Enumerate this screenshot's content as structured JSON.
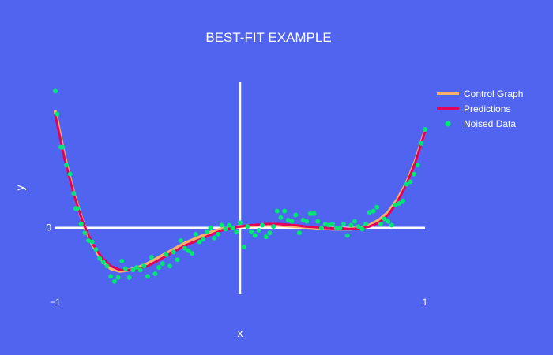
{
  "chart_data": {
    "type": "scatter",
    "title": "BEST-FIT EXAMPLE",
    "xlabel": "x",
    "ylabel": "y",
    "xlim": [
      -1,
      1
    ],
    "ylim": [
      -0.52,
      1.14
    ],
    "x_ticks": [
      {
        "value": -1,
        "label": "−1"
      },
      {
        "value": 1,
        "label": "1"
      }
    ],
    "y_ticks": [
      {
        "value": 0,
        "label": "0"
      }
    ],
    "grid": false,
    "zero_lines": true,
    "legend_position": "top-right",
    "colors": {
      "background": "#5064F0",
      "axis": "#ffffff",
      "text": "#ffffff",
      "control": "#F6B26B",
      "predictions": "#E3005C",
      "noise": "#00E676"
    },
    "series": [
      {
        "name": "Control Graph",
        "type": "line",
        "color": "#F6B26B",
        "x": [
          -1.0,
          -0.95,
          -0.9,
          -0.85,
          -0.8,
          -0.75,
          -0.7,
          -0.65,
          -0.6,
          -0.55,
          -0.5,
          -0.45,
          -0.4,
          -0.35,
          -0.3,
          -0.25,
          -0.2,
          -0.15,
          -0.1,
          -0.05,
          0.0,
          0.05,
          0.1,
          0.15,
          0.2,
          0.25,
          0.3,
          0.35,
          0.4,
          0.45,
          0.5,
          0.55,
          0.6,
          0.65,
          0.7,
          0.75,
          0.8,
          0.85,
          0.9,
          0.95,
          1.0
        ],
        "y": [
          0.91,
          0.56,
          0.27,
          0.04,
          -0.13,
          -0.25,
          -0.32,
          -0.34,
          -0.33,
          -0.31,
          -0.28,
          -0.24,
          -0.2,
          -0.16,
          -0.12,
          -0.09,
          -0.06,
          -0.03,
          -0.01,
          0.0,
          0.01,
          0.015,
          0.02,
          0.02,
          0.02,
          0.015,
          0.01,
          0.005,
          0.0,
          -0.005,
          -0.01,
          -0.01,
          -0.01,
          0.0,
          0.02,
          0.06,
          0.12,
          0.22,
          0.35,
          0.53,
          0.76
        ]
      },
      {
        "name": "Predictions",
        "type": "line",
        "color": "#E3005C",
        "x": [
          -1.0,
          -0.95,
          -0.9,
          -0.85,
          -0.8,
          -0.75,
          -0.7,
          -0.65,
          -0.6,
          -0.55,
          -0.5,
          -0.45,
          -0.4,
          -0.35,
          -0.3,
          -0.25,
          -0.2,
          -0.15,
          -0.1,
          -0.05,
          0.0,
          0.05,
          0.1,
          0.15,
          0.2,
          0.25,
          0.3,
          0.35,
          0.4,
          0.45,
          0.5,
          0.55,
          0.6,
          0.65,
          0.7,
          0.75,
          0.8,
          0.85,
          0.9,
          0.95,
          1.0
        ],
        "y": [
          0.88,
          0.54,
          0.26,
          0.04,
          -0.12,
          -0.23,
          -0.3,
          -0.33,
          -0.33,
          -0.32,
          -0.3,
          -0.26,
          -0.22,
          -0.18,
          -0.14,
          -0.11,
          -0.08,
          -0.05,
          -0.02,
          -0.005,
          0.01,
          0.02,
          0.025,
          0.03,
          0.03,
          0.025,
          0.02,
          0.01,
          0.005,
          0.0,
          -0.005,
          -0.005,
          -0.01,
          -0.005,
          0.01,
          0.04,
          0.1,
          0.2,
          0.34,
          0.52,
          0.75
        ]
      },
      {
        "name": "Noised Data",
        "type": "scatter",
        "color": "#00E676",
        "x": [
          -1.0,
          -0.99,
          -0.97,
          -0.96,
          -0.94,
          -0.92,
          -0.9,
          -0.89,
          -0.88,
          -0.86,
          -0.84,
          -0.82,
          -0.8,
          -0.78,
          -0.76,
          -0.74,
          -0.72,
          -0.7,
          -0.68,
          -0.66,
          -0.64,
          -0.62,
          -0.6,
          -0.58,
          -0.56,
          -0.54,
          -0.52,
          -0.5,
          -0.48,
          -0.46,
          -0.44,
          -0.42,
          -0.4,
          -0.38,
          -0.36,
          -0.34,
          -0.32,
          -0.3,
          -0.28,
          -0.26,
          -0.24,
          -0.22,
          -0.2,
          -0.18,
          -0.16,
          -0.14,
          -0.12,
          -0.1,
          -0.08,
          -0.06,
          -0.04,
          -0.02,
          0.0,
          0.02,
          0.04,
          0.06,
          0.08,
          0.1,
          0.12,
          0.14,
          0.16,
          0.18,
          0.2,
          0.22,
          0.24,
          0.26,
          0.28,
          0.3,
          0.32,
          0.34,
          0.36,
          0.38,
          0.4,
          0.42,
          0.44,
          0.46,
          0.48,
          0.5,
          0.52,
          0.54,
          0.56,
          0.58,
          0.6,
          0.62,
          0.64,
          0.66,
          0.68,
          0.7,
          0.72,
          0.74,
          0.76,
          0.78,
          0.8,
          0.82,
          0.84,
          0.86,
          0.88,
          0.9,
          0.92,
          0.94,
          0.96,
          0.98,
          1.0
        ],
        "y": [
          1.07,
          0.89,
          0.63,
          0.63,
          0.49,
          0.42,
          0.27,
          0.15,
          0.15,
          0.03,
          -0.04,
          -0.1,
          -0.11,
          -0.17,
          -0.24,
          -0.27,
          -0.3,
          -0.38,
          -0.42,
          -0.39,
          -0.26,
          -0.32,
          -0.39,
          -0.33,
          -0.31,
          -0.33,
          -0.3,
          -0.38,
          -0.23,
          -0.36,
          -0.31,
          -0.28,
          -0.21,
          -0.3,
          -0.19,
          -0.25,
          -0.1,
          -0.16,
          -0.18,
          -0.2,
          -0.05,
          -0.11,
          -0.09,
          -0.03,
          0.0,
          -0.08,
          -0.05,
          0.02,
          -0.01,
          0.02,
          0.0,
          -0.03,
          0.04,
          -0.15,
          0.01,
          -0.03,
          -0.06,
          -0.02,
          0.02,
          -0.07,
          -0.04,
          0.01,
          0.13,
          0.08,
          0.13,
          0.06,
          0.05,
          0.1,
          -0.04,
          0.06,
          0.05,
          0.11,
          0.11,
          0.05,
          0.0,
          0.03,
          0.02,
          0.03,
          0.0,
          0.0,
          0.03,
          -0.06,
          0.02,
          0.05,
          0.01,
          -0.01,
          0.03,
          0.12,
          0.13,
          0.16,
          0.03,
          0.07,
          0.05,
          0.02,
          0.18,
          0.19,
          0.21,
          0.34,
          0.36,
          0.42,
          0.49,
          0.66,
          0.77
        ]
      }
    ]
  }
}
